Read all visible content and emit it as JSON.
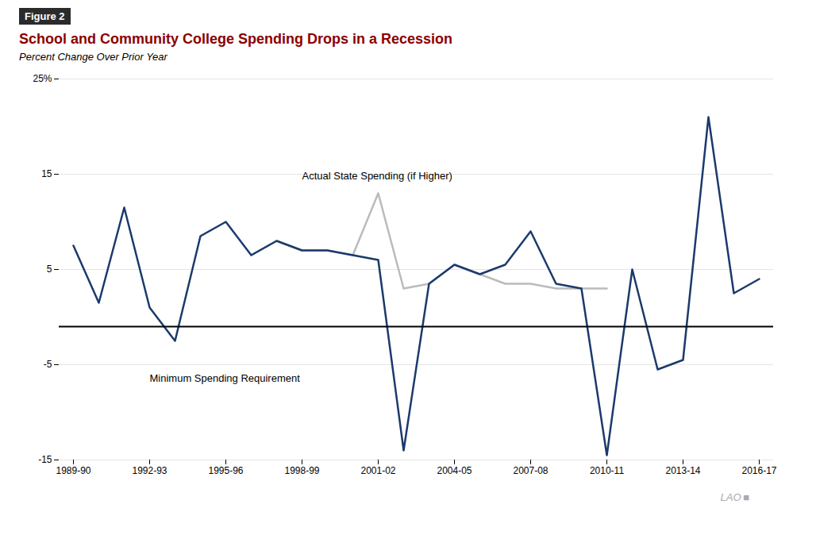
{
  "chart_data": {
    "type": "line",
    "title": "School and Community College Spending Drops in a Recession",
    "subtitle": "Percent Change Over Prior Year",
    "figure_label": "Figure 2",
    "footer": "LAO ■",
    "categories": [
      "1989-90",
      null,
      null,
      "1992-93",
      null,
      null,
      "1995-96",
      null,
      null,
      "1998-99",
      null,
      null,
      "2001-02",
      null,
      null,
      "2004-05",
      null,
      null,
      "2007-08",
      null,
      null,
      "2010-11",
      null,
      null,
      "2013-14",
      null,
      null,
      "2016-17"
    ],
    "series": [
      {
        "color": "#BBBBBB",
        "values": [
          null,
          null,
          null,
          null,
          null,
          null,
          null,
          6.5,
          8.0,
          7.0,
          7.0,
          6.5,
          13.0,
          3.0,
          3.5,
          5.5,
          4.5,
          3.5,
          3.5,
          3.0,
          3.0,
          3.0,
          null,
          null,
          null,
          null,
          null,
          null
        ]
      },
      {
        "color": "#1B3A6B",
        "values": [
          7.5,
          1.5,
          11.5,
          1.0,
          -2.5,
          8.5,
          10.0,
          6.5,
          8.0,
          7.0,
          7.0,
          6.5,
          6.0,
          -14.0,
          3.5,
          5.5,
          4.5,
          5.5,
          9.0,
          3.5,
          3.0,
          -14.5,
          5.0,
          -5.5,
          -4.5,
          21.0,
          2.5,
          4.0
        ]
      }
    ],
    "ylim": [
      -15,
      25
    ],
    "yticks": [
      -15,
      -5,
      5,
      15,
      {
        "value": 25,
        "label": "25%"
      }
    ],
    "grid": true,
    "rule_y": -1.0,
    "annotations": [
      {
        "text": "Actual State Spending (if Higher)",
        "x": "1998-99",
        "y": 14.5
      },
      {
        "text": "Minimum Spending Requirement",
        "x": "1992-93",
        "y": -6.0
      }
    ]
  }
}
